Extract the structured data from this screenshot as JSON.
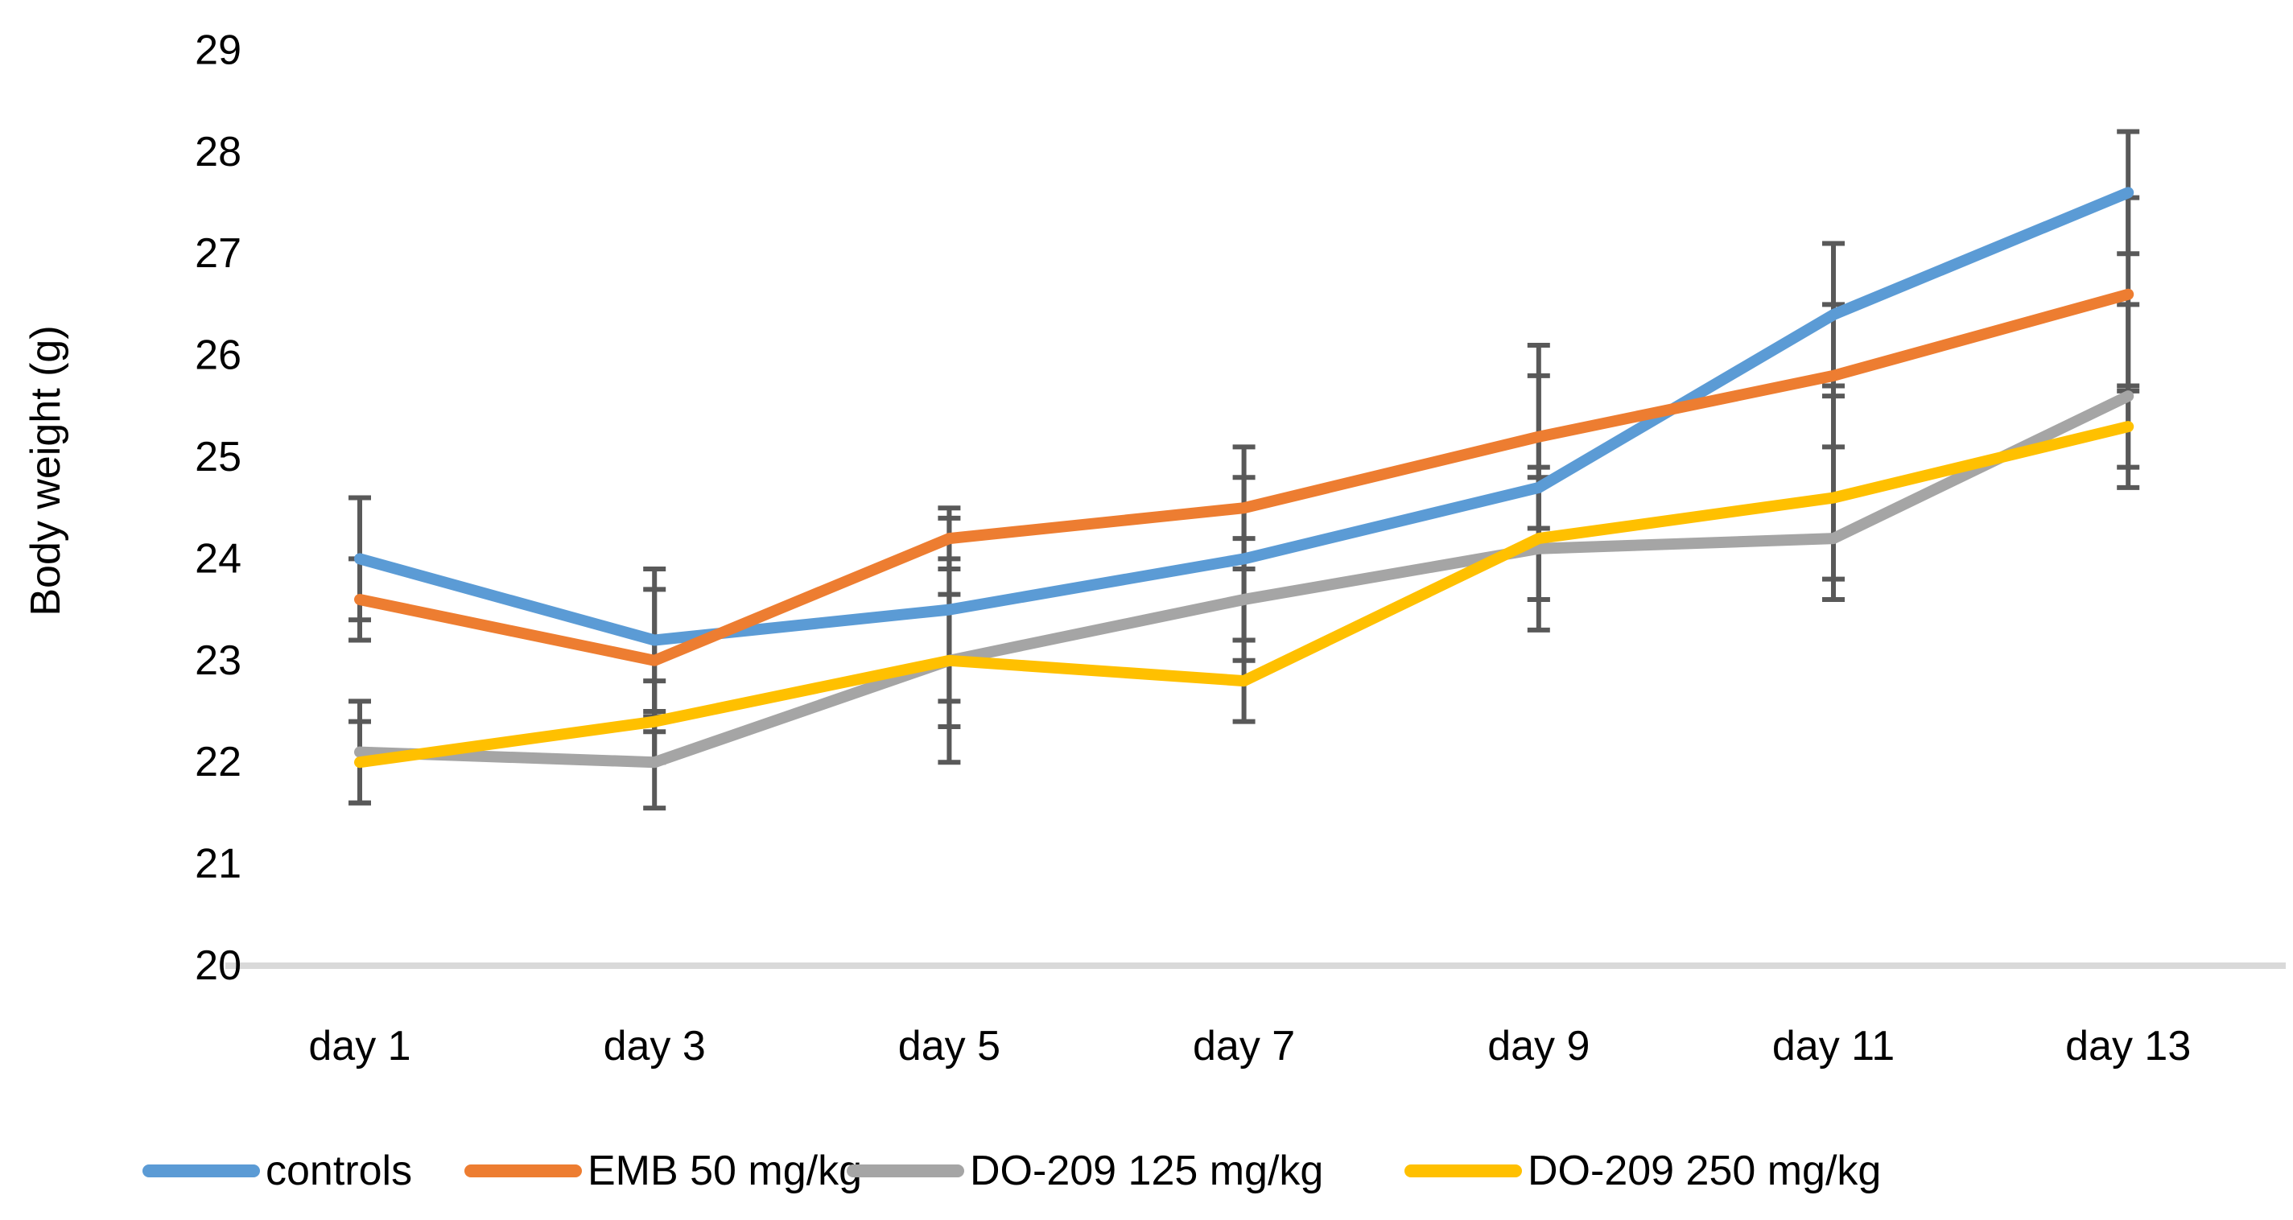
{
  "chart_data": {
    "type": "line",
    "title": "",
    "xlabel": "",
    "ylabel": "Body weight (g)",
    "categories": [
      "day 1",
      "day 3",
      "day 5",
      "day 7",
      "day 9",
      "day 11",
      "day 13"
    ],
    "ylim": [
      20,
      29
    ],
    "ytick_step": 1,
    "ytick_labels": [
      "20",
      "21",
      "22",
      "23",
      "24",
      "25",
      "26",
      "27",
      "28",
      "29"
    ],
    "grid": false,
    "legend_position": "bottom",
    "error_bars": true,
    "series": [
      {
        "name": "controls",
        "color": "#5B9BD5",
        "values": [
          24.0,
          23.2,
          23.5,
          24.0,
          24.7,
          26.4,
          27.6
        ],
        "error": [
          0.6,
          0.7,
          0.9,
          0.8,
          1.1,
          0.7,
          0.6
        ]
      },
      {
        "name": "EMB 50 mg/kg",
        "color": "#ED7D31",
        "values": [
          23.6,
          23.0,
          24.2,
          24.5,
          25.2,
          25.8,
          26.6
        ],
        "error": [
          0.4,
          0.7,
          0.3,
          0.6,
          0.9,
          0.7,
          0.95
        ]
      },
      {
        "name": "DO-209 125 mg/kg",
        "color": "#A5A5A5",
        "values": [
          22.1,
          22.0,
          23.0,
          23.6,
          24.1,
          24.2,
          25.6
        ],
        "error": [
          0.5,
          0.45,
          1.0,
          0.6,
          0.8,
          0.4,
          0.9
        ]
      },
      {
        "name": "DO-209 250 mg/kg",
        "color": "#FFC000",
        "values": [
          22.0,
          22.4,
          23.0,
          22.8,
          24.2,
          24.6,
          25.3
        ],
        "error": [
          0.4,
          0.4,
          0.65,
          0.4,
          0.6,
          1.0,
          0.4
        ]
      }
    ],
    "colors": {
      "error_bar": "#595959",
      "axis_line": "#D9D9D9",
      "text": "#000000"
    }
  }
}
